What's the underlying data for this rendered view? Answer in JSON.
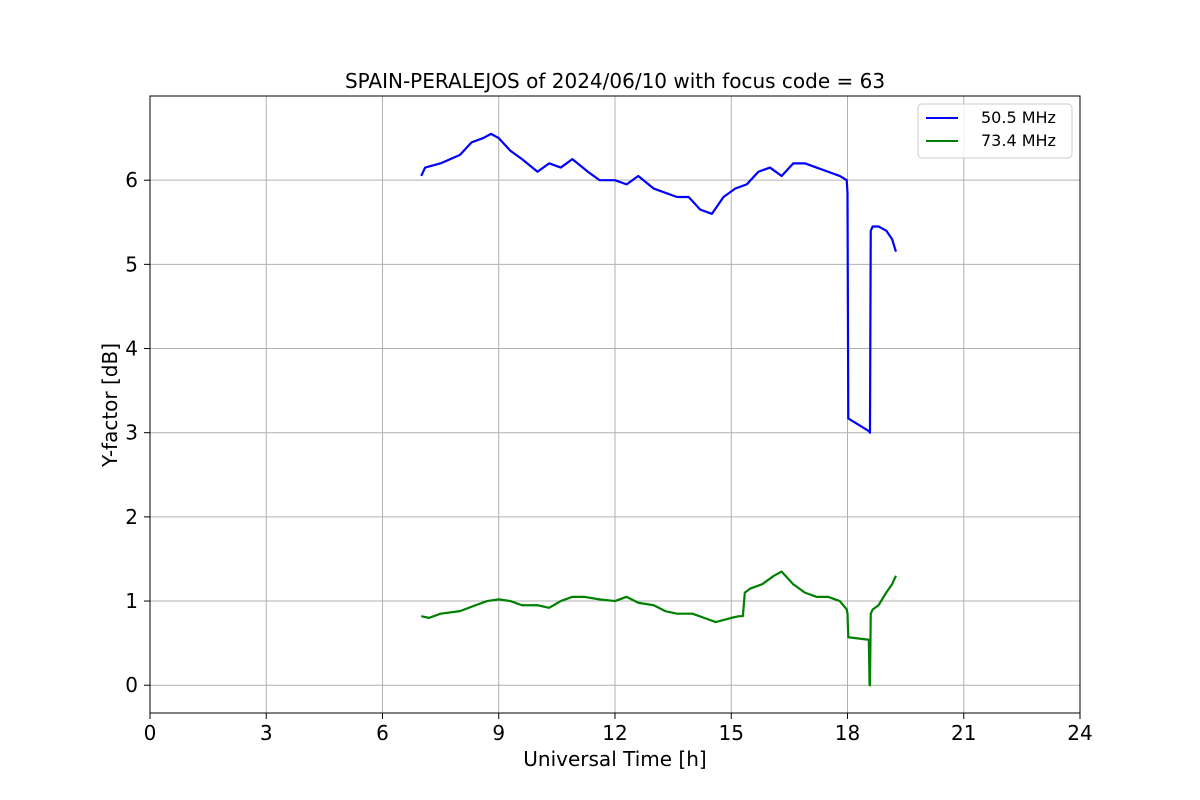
{
  "chart_data": {
    "type": "line",
    "title": "SPAIN-PERALEJOS of 2024/06/10 with focus code = 63",
    "xlabel": "Universal Time [h]",
    "ylabel": "Y-factor [dB]",
    "xlim": [
      0,
      24
    ],
    "ylim": [
      -0.33,
      7.0
    ],
    "xticks": [
      0,
      3,
      6,
      9,
      12,
      15,
      18,
      21,
      24
    ],
    "yticks": [
      0,
      1,
      2,
      3,
      4,
      5,
      6
    ],
    "grid": true,
    "legend_position": "top-right",
    "series": [
      {
        "name": "50.5 MHz",
        "color": "#0000ff",
        "x": [
          7.0,
          7.1,
          7.5,
          8.0,
          8.3,
          8.6,
          8.8,
          9.0,
          9.3,
          9.6,
          10.0,
          10.3,
          10.6,
          10.9,
          11.3,
          11.6,
          12.0,
          12.3,
          12.6,
          13.0,
          13.3,
          13.6,
          13.9,
          14.2,
          14.5,
          14.8,
          15.1,
          15.4,
          15.7,
          16.0,
          16.3,
          16.6,
          16.9,
          17.2,
          17.5,
          17.8,
          17.98,
          18.0,
          18.02,
          18.55,
          18.58,
          18.6,
          18.65,
          18.8,
          19.0,
          19.15,
          19.25
        ],
        "y": [
          6.05,
          6.15,
          6.2,
          6.3,
          6.45,
          6.5,
          6.55,
          6.5,
          6.35,
          6.25,
          6.1,
          6.2,
          6.15,
          6.25,
          6.1,
          6.0,
          6.0,
          5.95,
          6.05,
          5.9,
          5.85,
          5.8,
          5.8,
          5.65,
          5.6,
          5.8,
          5.9,
          5.95,
          6.1,
          6.15,
          6.05,
          6.2,
          6.2,
          6.15,
          6.1,
          6.05,
          6.0,
          5.85,
          3.17,
          3.02,
          3.0,
          5.4,
          5.45,
          5.45,
          5.4,
          5.3,
          5.15
        ]
      },
      {
        "name": "73.4 MHz",
        "color": "#008000",
        "x": [
          7.0,
          7.2,
          7.5,
          8.0,
          8.4,
          8.7,
          9.0,
          9.3,
          9.6,
          10.0,
          10.3,
          10.6,
          10.9,
          11.2,
          11.6,
          12.0,
          12.3,
          12.6,
          13.0,
          13.3,
          13.6,
          14.0,
          14.3,
          14.6,
          15.0,
          15.2,
          15.3,
          15.35,
          15.5,
          15.8,
          16.1,
          16.3,
          16.6,
          16.9,
          17.2,
          17.5,
          17.8,
          17.98,
          18.0,
          18.02,
          18.55,
          18.57,
          18.58,
          18.6,
          18.65,
          18.8,
          19.0,
          19.15,
          19.25
        ],
        "y": [
          0.82,
          0.8,
          0.85,
          0.88,
          0.95,
          1.0,
          1.02,
          1.0,
          0.95,
          0.95,
          0.92,
          1.0,
          1.05,
          1.05,
          1.02,
          1.0,
          1.05,
          0.98,
          0.95,
          0.88,
          0.85,
          0.85,
          0.8,
          0.75,
          0.8,
          0.82,
          0.82,
          1.1,
          1.15,
          1.2,
          1.3,
          1.35,
          1.2,
          1.1,
          1.05,
          1.05,
          1.0,
          0.9,
          0.85,
          0.57,
          0.54,
          0.0,
          0.0,
          0.85,
          0.9,
          0.95,
          1.1,
          1.2,
          1.3
        ]
      }
    ]
  }
}
